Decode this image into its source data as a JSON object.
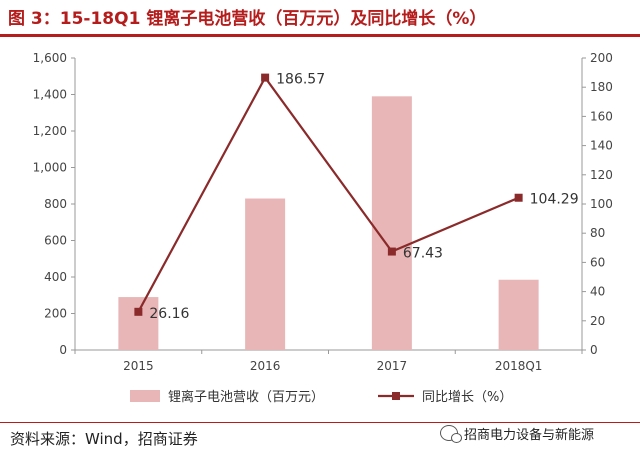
{
  "title": "图 3：15-18Q1 锂离子电池营收（百万元）及同比增长（%）",
  "source": "资料来源：Wind，招商证券",
  "watermark": "招商电力设备与新能源",
  "colors": {
    "bar": "#e8b6b6",
    "line": "#8b2a2a",
    "title": "#b51c1c"
  },
  "chart_data": {
    "type": "bar",
    "categories": [
      "2015",
      "2016",
      "2017",
      "2018Q1"
    ],
    "series": [
      {
        "name": "锂离子电池营收（百万元）",
        "type": "bar",
        "axis": "left",
        "values": [
          290,
          830,
          1390,
          385
        ]
      },
      {
        "name": "同比增长（%）",
        "type": "line",
        "axis": "right",
        "values": [
          26.16,
          186.57,
          67.43,
          104.29
        ]
      }
    ],
    "data_labels": [
      "26.16",
      "186.57",
      "67.43",
      "104.29"
    ],
    "y_left": {
      "min": 0,
      "max": 1600,
      "step": 200,
      "tick_labels": [
        "0",
        "200",
        "400",
        "600",
        "800",
        "1,000",
        "1,200",
        "1,400",
        "1,600"
      ]
    },
    "y_right": {
      "min": 0,
      "max": 200,
      "step": 20,
      "tick_labels": [
        "0",
        "20",
        "40",
        "60",
        "80",
        "100",
        "120",
        "140",
        "160",
        "180",
        "200"
      ]
    },
    "legend": [
      "锂离子电池营收（百万元）",
      "同比增长（%）"
    ],
    "legend_position": "bottom",
    "grid": false
  }
}
